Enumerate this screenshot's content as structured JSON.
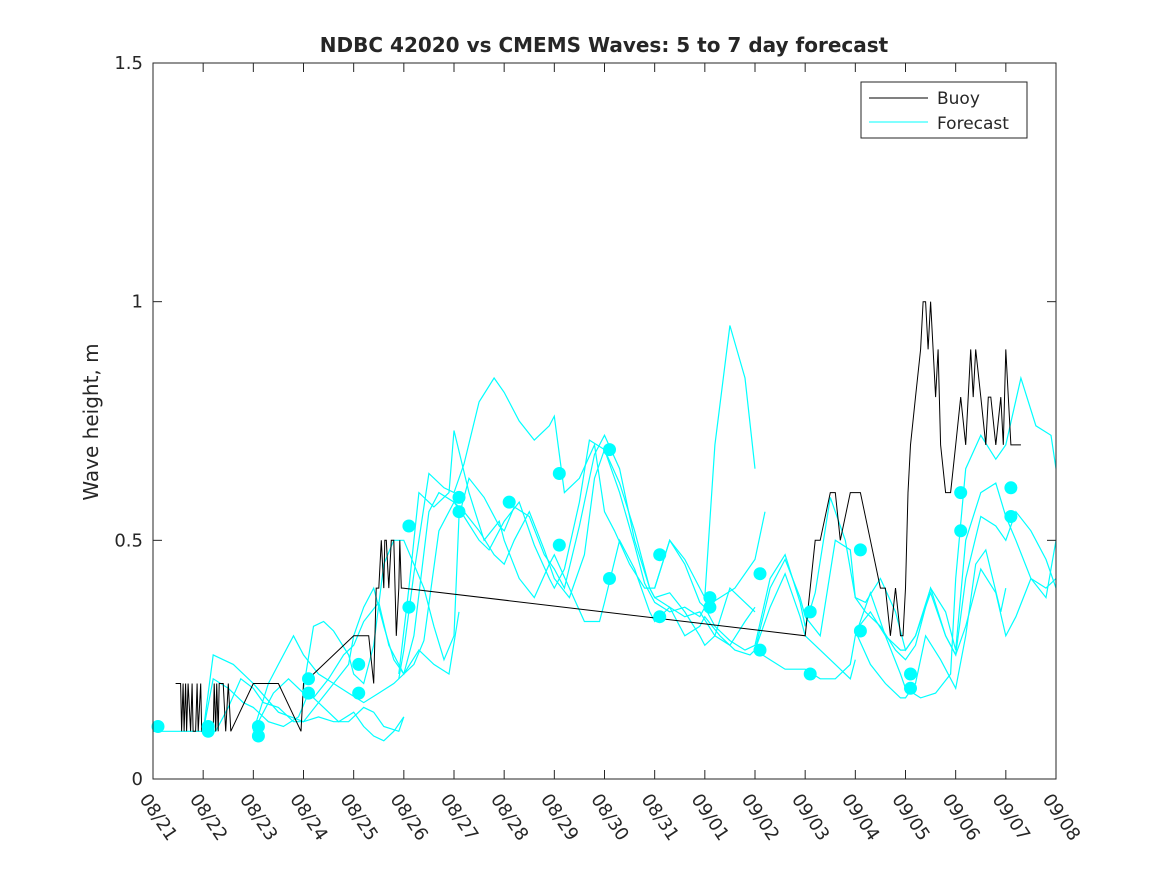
{
  "chart_data": {
    "type": "line",
    "title": "NDBC 42020 vs CMEMS Waves: 5 to 7 day forecast",
    "xlabel": "",
    "ylabel": "Wave height, m",
    "xlim": [
      0,
      18
    ],
    "ylim": [
      0,
      1.5
    ],
    "x_tick_values": [
      0,
      1,
      2,
      3,
      4,
      5,
      6,
      7,
      8,
      9,
      10,
      11,
      12,
      13,
      14,
      15,
      16,
      17,
      18
    ],
    "x_tick_labels": [
      "08/21",
      "08/22",
      "08/23",
      "08/24",
      "08/25",
      "08/26",
      "08/27",
      "08/28",
      "08/29",
      "08/30",
      "08/31",
      "09/01",
      "09/02",
      "09/03",
      "09/04",
      "09/05",
      "09/06",
      "09/07",
      "09/08"
    ],
    "y_tick_values": [
      0,
      0.5,
      1,
      1.5
    ],
    "y_tick_labels": [
      "0",
      "0.5",
      "1",
      "1.5"
    ],
    "legend": {
      "position": "top-right",
      "entries": [
        {
          "label": "Buoy",
          "color": "#000000"
        },
        {
          "label": "Forecast",
          "color": "#00ffff"
        }
      ]
    },
    "colors": {
      "buoy": "#000000",
      "forecast": "#00ffff",
      "axis": "#262626"
    },
    "buoy": {
      "name": "Buoy",
      "x": [
        0.45,
        0.5,
        0.55,
        0.57,
        0.6,
        0.62,
        0.65,
        0.67,
        0.7,
        0.75,
        0.78,
        0.8,
        0.85,
        0.88,
        0.9,
        0.95,
        0.97,
        1.0,
        1.15,
        1.2,
        1.22,
        1.25,
        1.27,
        1.3,
        1.32,
        1.35,
        1.4,
        1.45,
        1.5,
        1.55,
        2.0,
        2.5,
        2.95,
        3.0,
        4.0,
        4.3,
        4.4,
        4.45,
        4.5,
        4.55,
        4.6,
        4.62,
        4.65,
        4.7,
        4.75,
        4.8,
        4.85,
        4.9,
        4.92,
        4.95,
        4.98,
        13.0,
        13.1,
        13.2,
        13.3,
        13.5,
        13.6,
        13.7,
        13.9,
        14.0,
        14.1,
        14.3,
        14.5,
        14.6,
        14.7,
        14.8,
        14.9,
        14.95,
        15.0,
        15.05,
        15.1,
        15.2,
        15.3,
        15.35,
        15.4,
        15.45,
        15.5,
        15.55,
        15.6,
        15.65,
        15.7,
        15.8,
        15.9,
        16.0,
        16.1,
        16.2,
        16.3,
        16.35,
        16.4,
        16.5,
        16.6,
        16.65,
        16.7,
        16.8,
        16.9,
        16.95,
        17.0,
        17.05,
        17.1,
        17.2,
        17.3
      ],
      "values": [
        0.2,
        0.2,
        0.2,
        0.1,
        0.2,
        0.1,
        0.2,
        0.1,
        0.2,
        0.1,
        0.2,
        0.1,
        0.1,
        0.2,
        0.1,
        0.2,
        0.1,
        0.1,
        0.1,
        0.1,
        0.2,
        0.1,
        0.2,
        0.1,
        0.2,
        0.2,
        0.2,
        0.1,
        0.2,
        0.1,
        0.2,
        0.2,
        0.1,
        0.2,
        0.3,
        0.3,
        0.2,
        0.4,
        0.4,
        0.5,
        0.4,
        0.5,
        0.5,
        0.4,
        0.5,
        0.5,
        0.3,
        0.4,
        0.5,
        0.4,
        0.4,
        0.3,
        0.4,
        0.5,
        0.5,
        0.6,
        0.6,
        0.5,
        0.6,
        0.6,
        0.6,
        0.5,
        0.4,
        0.4,
        0.3,
        0.4,
        0.3,
        0.3,
        0.4,
        0.6,
        0.7,
        0.8,
        0.9,
        1.0,
        1.0,
        0.9,
        1.0,
        0.9,
        0.8,
        0.9,
        0.7,
        0.6,
        0.6,
        0.7,
        0.8,
        0.7,
        0.9,
        0.8,
        0.9,
        0.8,
        0.7,
        0.8,
        0.8,
        0.7,
        0.8,
        0.7,
        0.9,
        0.8,
        0.7,
        0.7,
        0.7
      ]
    },
    "forecast_series": [
      {
        "name": "Forecast",
        "x": [
          0,
          0.5,
          1.0,
          1.25,
          1.5,
          1.75,
          2.0,
          2.2,
          2.5,
          2.8,
          3.0,
          3.3,
          3.6,
          3.9,
          4.2,
          4.4,
          4.6,
          4.9,
          5.0
        ],
        "values": [
          0.1,
          0.1,
          0.1,
          0.1,
          0.15,
          0.21,
          0.19,
          0.16,
          0.15,
          0.12,
          0.12,
          0.13,
          0.12,
          0.12,
          0.15,
          0.14,
          0.11,
          0.1,
          0.13
        ]
      },
      {
        "name": "Forecast",
        "x": [
          1.0,
          1.2,
          1.5,
          1.8,
          2.0,
          2.3,
          2.6,
          2.9,
          3.1,
          3.4,
          3.7,
          4.0,
          4.2,
          4.4,
          4.6,
          4.8,
          5.0
        ],
        "values": [
          0.1,
          0.21,
          0.19,
          0.16,
          0.15,
          0.12,
          0.11,
          0.13,
          0.18,
          0.15,
          0.12,
          0.14,
          0.11,
          0.09,
          0.08,
          0.1,
          0.13
        ]
      },
      {
        "name": "Forecast",
        "x": [
          1.0,
          1.2,
          1.4,
          1.6,
          2.0,
          2.5,
          3.0,
          3.3,
          3.6,
          3.9,
          4.2,
          4.5,
          4.8,
          5.0,
          5.3,
          5.6,
          5.9,
          6.1
        ],
        "values": [
          0.1,
          0.26,
          0.25,
          0.24,
          0.2,
          0.14,
          0.12,
          0.16,
          0.2,
          0.18,
          0.16,
          0.18,
          0.2,
          0.22,
          0.27,
          0.24,
          0.22,
          0.35
        ]
      },
      {
        "name": "Forecast",
        "x": [
          2.0,
          2.2,
          2.4,
          2.7,
          3.0,
          3.2,
          3.5,
          3.8,
          4.0,
          4.2,
          4.5,
          4.7,
          5.0,
          5.2,
          5.4,
          5.7,
          6.0,
          6.2,
          6.5,
          6.8,
          7.0,
          7.2,
          7.5,
          7.8,
          8.0,
          8.3,
          8.6,
          8.8,
          9.0,
          9.3,
          9.6,
          9.9,
          10.0,
          10.3,
          10.6,
          10.9,
          11.2,
          11.5,
          11.8,
          12.0
        ],
        "values": [
          0.1,
          0.14,
          0.18,
          0.21,
          0.18,
          0.17,
          0.21,
          0.26,
          0.28,
          0.33,
          0.37,
          0.28,
          0.22,
          0.24,
          0.29,
          0.52,
          0.58,
          0.56,
          0.52,
          0.47,
          0.45,
          0.5,
          0.56,
          0.48,
          0.42,
          0.38,
          0.47,
          0.63,
          0.69,
          0.62,
          0.52,
          0.4,
          0.38,
          0.36,
          0.34,
          0.35,
          0.3,
          0.28,
          0.33,
          0.36
        ]
      },
      {
        "name": "Forecast",
        "x": [
          2.0,
          2.3,
          2.5,
          2.8,
          3.0,
          3.3,
          3.6,
          3.9,
          4.0,
          4.2,
          4.4,
          4.6,
          4.8,
          5.0,
          5.2,
          5.5,
          5.7,
          6.0,
          6.2,
          6.5,
          6.7,
          7.0,
          7.3,
          7.6,
          7.9,
          8.0,
          8.2,
          8.5,
          8.7,
          9.0,
          9.3,
          9.6,
          9.8,
          10.0,
          10.3,
          10.6,
          10.9,
          11.0,
          11.3,
          11.6,
          12.0,
          12.2
        ],
        "values": [
          0.1,
          0.2,
          0.24,
          0.3,
          0.26,
          0.22,
          0.2,
          0.24,
          0.3,
          0.36,
          0.4,
          0.32,
          0.25,
          0.22,
          0.3,
          0.56,
          0.6,
          0.58,
          0.55,
          0.5,
          0.48,
          0.54,
          0.58,
          0.49,
          0.42,
          0.4,
          0.44,
          0.58,
          0.71,
          0.69,
          0.6,
          0.49,
          0.41,
          0.37,
          0.35,
          0.36,
          0.34,
          0.36,
          0.38,
          0.4,
          0.46,
          0.56
        ]
      },
      {
        "name": "Forecast",
        "x": [
          3.0,
          3.2,
          3.4,
          3.6,
          3.9,
          4.0,
          4.2,
          4.4,
          4.6,
          4.8,
          5.0,
          5.2,
          5.4,
          5.6,
          5.8,
          6.0,
          6.1,
          6.3,
          6.6,
          6.9,
          7.0,
          7.2,
          7.5,
          7.8,
          8.0,
          8.2,
          8.5,
          8.8,
          9.0,
          9.3,
          9.6,
          9.9,
          10.0,
          10.3,
          10.6,
          10.9,
          11.0,
          11.2,
          11.5,
          11.8,
          12.0
        ],
        "values": [
          0.19,
          0.32,
          0.33,
          0.31,
          0.26,
          0.22,
          0.2,
          0.28,
          0.45,
          0.5,
          0.5,
          0.45,
          0.4,
          0.32,
          0.25,
          0.3,
          0.55,
          0.63,
          0.59,
          0.53,
          0.52,
          0.57,
          0.55,
          0.47,
          0.44,
          0.4,
          0.53,
          0.68,
          0.72,
          0.65,
          0.5,
          0.4,
          0.38,
          0.39,
          0.35,
          0.3,
          0.28,
          0.3,
          0.4,
          0.37,
          0.35
        ]
      },
      {
        "name": "Forecast",
        "x": [
          4.9,
          5.0,
          5.2,
          5.5,
          5.8,
          6.0,
          6.2,
          6.5,
          6.8,
          7.0,
          7.3,
          7.6,
          7.9,
          8.0,
          8.2,
          8.5,
          8.8,
          9.0,
          9.2,
          9.5,
          9.8,
          10.0,
          10.3,
          10.6,
          10.9,
          11.0,
          11.2,
          11.5,
          11.8,
          12.0
        ],
        "values": [
          0.21,
          0.27,
          0.43,
          0.64,
          0.61,
          0.6,
          0.66,
          0.79,
          0.84,
          0.81,
          0.75,
          0.71,
          0.74,
          0.76,
          0.6,
          0.63,
          0.7,
          0.56,
          0.52,
          0.45,
          0.4,
          0.4,
          0.5,
          0.46,
          0.4,
          0.38,
          0.7,
          0.95,
          0.84,
          0.65
        ]
      },
      {
        "name": "Forecast",
        "x": [
          4.9,
          5.1,
          5.3,
          5.6,
          5.9,
          6.0,
          6.3,
          6.6,
          6.9,
          7.0,
          7.3,
          7.6,
          7.9,
          8.0,
          8.3,
          8.6,
          8.9,
          9.0,
          9.3,
          9.6,
          9.9,
          10.0,
          10.3,
          10.6,
          10.9,
          11.0,
          11.3,
          11.6,
          11.9,
          12.0,
          12.3,
          12.6,
          12.9,
          13.0,
          13.3,
          13.6,
          13.9,
          14.0
        ],
        "values": [
          0.22,
          0.4,
          0.6,
          0.57,
          0.6,
          0.73,
          0.6,
          0.5,
          0.54,
          0.5,
          0.42,
          0.38,
          0.45,
          0.47,
          0.4,
          0.33,
          0.33,
          0.37,
          0.5,
          0.44,
          0.35,
          0.33,
          0.36,
          0.3,
          0.32,
          0.34,
          0.3,
          0.27,
          0.26,
          0.27,
          0.36,
          0.43,
          0.34,
          0.3,
          0.27,
          0.24,
          0.21,
          0.25
        ]
      },
      {
        "name": "Forecast",
        "x": [
          10.0,
          10.3,
          10.6,
          10.9,
          11.0,
          11.2,
          11.5,
          11.8,
          12.0,
          12.3,
          12.6,
          12.9,
          13.0,
          13.2,
          13.5,
          13.8,
          14.0,
          14.2,
          14.5,
          14.8,
          15.0,
          15.2,
          15.5,
          15.8,
          16.0,
          16.2,
          16.5,
          16.8,
          17.0,
          17.2,
          17.5,
          17.8,
          18.0
        ],
        "values": [
          0.4,
          0.5,
          0.45,
          0.37,
          0.36,
          0.32,
          0.29,
          0.27,
          0.28,
          0.42,
          0.47,
          0.37,
          0.32,
          0.39,
          0.59,
          0.5,
          0.38,
          0.35,
          0.32,
          0.27,
          0.25,
          0.28,
          0.4,
          0.35,
          0.27,
          0.5,
          0.6,
          0.62,
          0.55,
          0.5,
          0.42,
          0.38,
          0.5
        ]
      },
      {
        "name": "Forecast",
        "x": [
          12.0,
          12.3,
          12.6,
          12.9,
          13.0,
          13.3,
          13.6,
          13.9,
          14.0,
          14.2,
          14.5,
          14.8,
          15.0,
          15.2,
          15.5,
          15.8,
          16.0,
          16.2,
          16.5,
          16.8,
          17.0,
          17.2,
          17.5,
          17.8,
          18.0
        ],
        "values": [
          0.27,
          0.4,
          0.46,
          0.38,
          0.34,
          0.3,
          0.5,
          0.48,
          0.38,
          0.37,
          0.42,
          0.35,
          0.27,
          0.3,
          0.4,
          0.3,
          0.26,
          0.42,
          0.55,
          0.53,
          0.5,
          0.56,
          0.52,
          0.46,
          0.4
        ]
      },
      {
        "name": "Forecast",
        "x": [
          12.0,
          12.3,
          12.6,
          12.9,
          13.0,
          13.3,
          13.6,
          13.9,
          14.0,
          14.3,
          14.6,
          14.9,
          15.0,
          15.3,
          15.6,
          15.9,
          16.0,
          16.2,
          16.5,
          16.8,
          17.0,
          17.3,
          17.6,
          17.9,
          18.0
        ],
        "values": [
          0.27,
          0.25,
          0.23,
          0.23,
          0.23,
          0.21,
          0.21,
          0.24,
          0.3,
          0.39,
          0.3,
          0.22,
          0.19,
          0.17,
          0.18,
          0.22,
          0.42,
          0.65,
          0.72,
          0.67,
          0.7,
          0.84,
          0.74,
          0.72,
          0.65
        ]
      },
      {
        "name": "Forecast",
        "x": [
          14.0,
          14.3,
          14.6,
          14.9,
          15.0,
          15.2,
          15.4,
          15.7,
          16.0,
          16.2,
          16.4,
          16.6,
          16.9,
          17.0
        ],
        "values": [
          0.31,
          0.24,
          0.2,
          0.17,
          0.17,
          0.2,
          0.3,
          0.25,
          0.19,
          0.3,
          0.45,
          0.48,
          0.35,
          0.4
        ]
      },
      {
        "name": "Forecast",
        "x": [
          14.0,
          14.3,
          14.6,
          14.9,
          15.0,
          15.2,
          15.5,
          15.8,
          16.0,
          16.2,
          16.5,
          16.8,
          17.0,
          17.2,
          17.5,
          17.8,
          18.0
        ],
        "values": [
          0.31,
          0.35,
          0.3,
          0.27,
          0.27,
          0.3,
          0.39,
          0.3,
          0.26,
          0.32,
          0.44,
          0.39,
          0.3,
          0.34,
          0.42,
          0.4,
          0.42
        ]
      }
    ],
    "forecast_markers": {
      "name": "Forecast start points",
      "x": [
        0.1,
        1.1,
        1.1,
        2.1,
        2.1,
        3.1,
        3.1,
        4.1,
        4.1,
        5.1,
        5.1,
        6.1,
        6.1,
        7.1,
        8.1,
        8.1,
        9.1,
        9.1,
        10.1,
        10.1,
        11.1,
        11.1,
        12.1,
        12.1,
        13.1,
        13.1,
        14.1,
        14.1,
        15.1,
        15.1,
        16.1,
        16.1,
        17.1,
        17.1
      ],
      "values": [
        0.11,
        0.11,
        0.1,
        0.11,
        0.09,
        0.21,
        0.18,
        0.24,
        0.18,
        0.53,
        0.36,
        0.59,
        0.56,
        0.58,
        0.64,
        0.49,
        0.69,
        0.42,
        0.47,
        0.34,
        0.38,
        0.36,
        0.43,
        0.27,
        0.35,
        0.22,
        0.48,
        0.31,
        0.22,
        0.19,
        0.6,
        0.52,
        0.61,
        0.55
      ]
    }
  }
}
